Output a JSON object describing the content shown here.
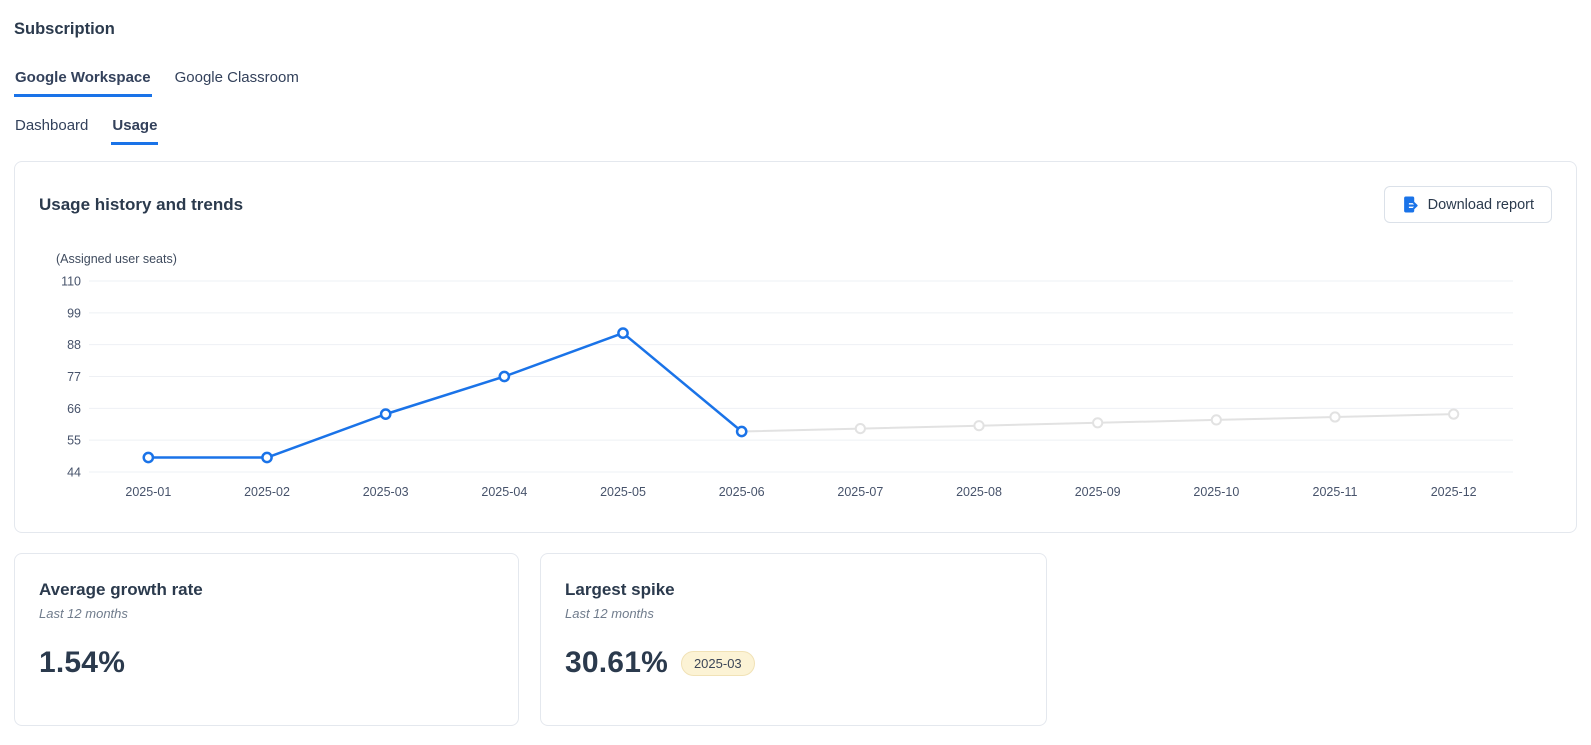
{
  "page": {
    "title": "Subscription"
  },
  "product_tabs": [
    {
      "label": "Google Workspace",
      "active": true
    },
    {
      "label": "Google Classroom",
      "active": false
    }
  ],
  "view_tabs": [
    {
      "label": "Dashboard",
      "active": false
    },
    {
      "label": "Usage",
      "active": true
    }
  ],
  "usage_card": {
    "title": "Usage history and trends",
    "download_button": {
      "label": "Download report",
      "icon": "export-report-icon"
    }
  },
  "chart_data": {
    "type": "line",
    "title": "Usage history and trends",
    "ylabel": "(Assigned user seats)",
    "categories": [
      "2025-01",
      "2025-02",
      "2025-03",
      "2025-04",
      "2025-05",
      "2025-06",
      "2025-07",
      "2025-08",
      "2025-09",
      "2025-10",
      "2025-11",
      "2025-12"
    ],
    "yticks": [
      44,
      55,
      66,
      77,
      88,
      99,
      110
    ],
    "ylim": [
      44,
      110
    ],
    "grid": "horizontal",
    "legend": "none",
    "series": [
      {
        "name": "Assigned user seats (actual)",
        "color": "#1a73e8",
        "start_index": 0,
        "values": [
          49,
          49,
          64,
          77,
          92,
          58
        ]
      },
      {
        "name": "Assigned user seats (projected)",
        "color": "#e2e2e2",
        "start_index": 5,
        "values": [
          58,
          59,
          60,
          61,
          62,
          63,
          64
        ]
      }
    ]
  },
  "stat_cards": [
    {
      "title": "Average growth rate",
      "subtitle": "Last 12 months",
      "value": "1.54%"
    },
    {
      "title": "Largest spike",
      "subtitle": "Last 12 months",
      "value": "30.61%",
      "badge": "2025-03"
    }
  ],
  "colors": {
    "accent_blue": "#1a73e8",
    "heading_text": "#2b3a4d",
    "muted_text": "#707c8c",
    "gridline": "#eef0f4",
    "axis_text": "#47536b",
    "projected_line": "#e2e2e2",
    "card_border": "#e4e8ee",
    "badge_bg": "#fcf3d5",
    "badge_border": "#f1e2b6"
  }
}
